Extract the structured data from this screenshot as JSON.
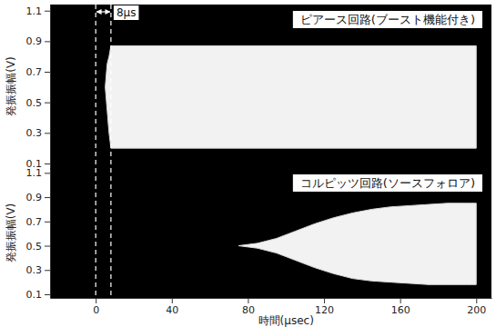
{
  "chart_data": [
    {
      "type": "area",
      "title": "ピアース回路(ブースト機能付き)",
      "y_label": "発振振幅(V)",
      "x": [
        5,
        6,
        7,
        8,
        9,
        200
      ],
      "series": [
        {
          "color": "#f2f2f2",
          "values": [
            0.6,
            0.75,
            0.8,
            0.87,
            0.87,
            0.87
          ]
        },
        {
          "color": "#d9d9d9",
          "values": [
            0.6,
            0.45,
            0.3,
            0.2,
            0.2,
            0.2
          ]
        }
      ],
      "xlim": [
        -24,
        208
      ],
      "ylim": [
        0.07,
        1.14
      ],
      "yticks": [
        0.1,
        0.3,
        0.5,
        0.7,
        0.9,
        1.1
      ],
      "tick_labels": "y",
      "markers": {
        "x": [
          0,
          8
        ],
        "label": "8μs"
      }
    },
    {
      "type": "area",
      "title": "コルピッツ回路(ソースフォロア)",
      "y_label": "発振振幅(V)",
      "x_label": "時間(μsec)",
      "x": [
        75,
        85,
        95,
        105,
        115,
        125,
        135,
        145,
        155,
        165,
        175,
        185,
        195,
        200
      ],
      "series": [
        {
          "color": "#f2f2f2",
          "values": [
            0.5,
            0.52,
            0.56,
            0.62,
            0.68,
            0.73,
            0.77,
            0.8,
            0.82,
            0.83,
            0.84,
            0.85,
            0.85,
            0.85
          ]
        },
        {
          "color": "#d9d9d9",
          "values": [
            0.5,
            0.48,
            0.44,
            0.38,
            0.32,
            0.27,
            0.23,
            0.21,
            0.2,
            0.19,
            0.18,
            0.18,
            0.18,
            0.18
          ]
        }
      ],
      "xlim": [
        -24,
        208
      ],
      "ylim": [
        0.07,
        1.14
      ],
      "xticks": [
        0,
        40,
        80,
        120,
        160,
        200
      ],
      "yticks": [
        0.1,
        0.3,
        0.5,
        0.7,
        0.9,
        1.1
      ]
    }
  ]
}
